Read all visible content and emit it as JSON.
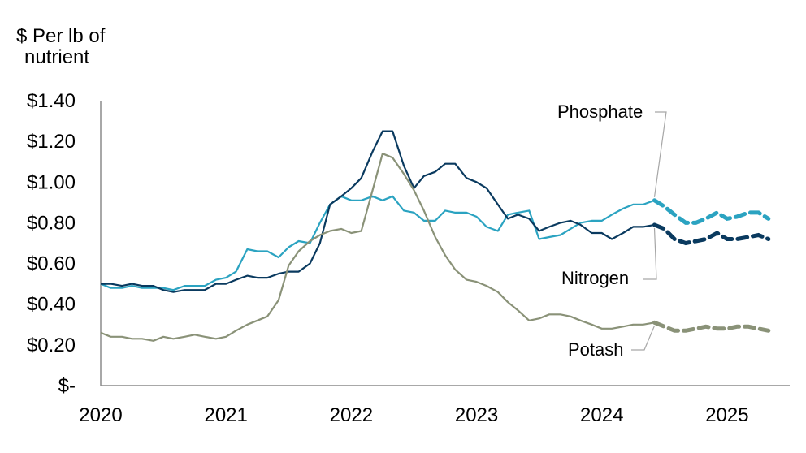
{
  "chart_data": {
    "type": "line",
    "y_unit_label_lines": [
      "$ Per lb of",
      "nutrient"
    ],
    "ylim": [
      0,
      1.4
    ],
    "yticks": [
      {
        "value": 0,
        "label": "$-"
      },
      {
        "value": 0.2,
        "label": "$0.20"
      },
      {
        "value": 0.4,
        "label": "$0.40"
      },
      {
        "value": 0.6,
        "label": "$0.60"
      },
      {
        "value": 0.8,
        "label": "$0.80"
      },
      {
        "value": 1.0,
        "label": "$1.00"
      },
      {
        "value": 1.2,
        "label": "$1.20"
      },
      {
        "value": 1.4,
        "label": "$1.40"
      }
    ],
    "xlim": [
      2020.0,
      2025.5
    ],
    "xticks": [
      {
        "value": 2020,
        "label": "2020"
      },
      {
        "value": 2021,
        "label": "2021"
      },
      {
        "value": 2022,
        "label": "2022"
      },
      {
        "value": 2023,
        "label": "2023"
      },
      {
        "value": 2024,
        "label": "2024"
      },
      {
        "value": 2025,
        "label": "2025"
      }
    ],
    "grid": false,
    "series": [
      {
        "name": "Phosphate",
        "color": "#2ba3c1",
        "actual": [
          [
            2020.0,
            0.5
          ],
          [
            2020.08,
            0.48
          ],
          [
            2020.17,
            0.48
          ],
          [
            2020.25,
            0.49
          ],
          [
            2020.33,
            0.48
          ],
          [
            2020.42,
            0.48
          ],
          [
            2020.5,
            0.48
          ],
          [
            2020.58,
            0.47
          ],
          [
            2020.67,
            0.49
          ],
          [
            2020.75,
            0.49
          ],
          [
            2020.83,
            0.49
          ],
          [
            2020.92,
            0.52
          ],
          [
            2021.0,
            0.53
          ],
          [
            2021.08,
            0.56
          ],
          [
            2021.17,
            0.67
          ],
          [
            2021.25,
            0.66
          ],
          [
            2021.33,
            0.66
          ],
          [
            2021.42,
            0.63
          ],
          [
            2021.5,
            0.68
          ],
          [
            2021.58,
            0.71
          ],
          [
            2021.67,
            0.7
          ],
          [
            2021.75,
            0.8
          ],
          [
            2021.83,
            0.89
          ],
          [
            2021.92,
            0.93
          ],
          [
            2022.0,
            0.91
          ],
          [
            2022.08,
            0.91
          ],
          [
            2022.17,
            0.93
          ],
          [
            2022.25,
            0.91
          ],
          [
            2022.33,
            0.93
          ],
          [
            2022.42,
            0.86
          ],
          [
            2022.5,
            0.85
          ],
          [
            2022.58,
            0.81
          ],
          [
            2022.67,
            0.81
          ],
          [
            2022.75,
            0.86
          ],
          [
            2022.83,
            0.85
          ],
          [
            2022.92,
            0.85
          ],
          [
            2023.0,
            0.83
          ],
          [
            2023.08,
            0.78
          ],
          [
            2023.17,
            0.76
          ],
          [
            2023.25,
            0.84
          ],
          [
            2023.33,
            0.85
          ],
          [
            2023.42,
            0.86
          ],
          [
            2023.5,
            0.72
          ],
          [
            2023.58,
            0.73
          ],
          [
            2023.67,
            0.74
          ],
          [
            2023.75,
            0.77
          ],
          [
            2023.83,
            0.8
          ],
          [
            2023.92,
            0.81
          ],
          [
            2024.0,
            0.81
          ],
          [
            2024.08,
            0.84
          ],
          [
            2024.17,
            0.87
          ],
          [
            2024.25,
            0.89
          ],
          [
            2024.33,
            0.89
          ],
          [
            2024.42,
            0.91
          ]
        ],
        "forecast": [
          [
            2024.42,
            0.91
          ],
          [
            2024.5,
            0.88
          ],
          [
            2024.58,
            0.84
          ],
          [
            2024.67,
            0.8
          ],
          [
            2024.75,
            0.8
          ],
          [
            2024.83,
            0.82
          ],
          [
            2024.92,
            0.85
          ],
          [
            2025.0,
            0.82
          ],
          [
            2025.08,
            0.83
          ],
          [
            2025.17,
            0.85
          ],
          [
            2025.25,
            0.85
          ],
          [
            2025.33,
            0.82
          ]
        ]
      },
      {
        "name": "Nitrogen",
        "color": "#0a3a5f",
        "actual": [
          [
            2020.0,
            0.5
          ],
          [
            2020.08,
            0.5
          ],
          [
            2020.17,
            0.49
          ],
          [
            2020.25,
            0.5
          ],
          [
            2020.33,
            0.49
          ],
          [
            2020.42,
            0.49
          ],
          [
            2020.5,
            0.47
          ],
          [
            2020.58,
            0.46
          ],
          [
            2020.67,
            0.47
          ],
          [
            2020.75,
            0.47
          ],
          [
            2020.83,
            0.47
          ],
          [
            2020.92,
            0.5
          ],
          [
            2021.0,
            0.5
          ],
          [
            2021.08,
            0.52
          ],
          [
            2021.17,
            0.54
          ],
          [
            2021.25,
            0.53
          ],
          [
            2021.33,
            0.53
          ],
          [
            2021.42,
            0.55
          ],
          [
            2021.5,
            0.56
          ],
          [
            2021.58,
            0.56
          ],
          [
            2021.67,
            0.6
          ],
          [
            2021.75,
            0.7
          ],
          [
            2021.83,
            0.89
          ],
          [
            2021.92,
            0.93
          ],
          [
            2022.0,
            0.97
          ],
          [
            2022.08,
            1.02
          ],
          [
            2022.17,
            1.15
          ],
          [
            2022.25,
            1.25
          ],
          [
            2022.33,
            1.25
          ],
          [
            2022.42,
            1.08
          ],
          [
            2022.5,
            0.97
          ],
          [
            2022.58,
            1.03
          ],
          [
            2022.67,
            1.05
          ],
          [
            2022.75,
            1.09
          ],
          [
            2022.83,
            1.09
          ],
          [
            2022.92,
            1.02
          ],
          [
            2023.0,
            1.0
          ],
          [
            2023.08,
            0.97
          ],
          [
            2023.17,
            0.89
          ],
          [
            2023.25,
            0.82
          ],
          [
            2023.33,
            0.84
          ],
          [
            2023.42,
            0.82
          ],
          [
            2023.5,
            0.76
          ],
          [
            2023.58,
            0.78
          ],
          [
            2023.67,
            0.8
          ],
          [
            2023.75,
            0.81
          ],
          [
            2023.83,
            0.79
          ],
          [
            2023.92,
            0.75
          ],
          [
            2024.0,
            0.75
          ],
          [
            2024.08,
            0.72
          ],
          [
            2024.17,
            0.75
          ],
          [
            2024.25,
            0.78
          ],
          [
            2024.33,
            0.78
          ],
          [
            2024.42,
            0.79
          ]
        ],
        "forecast": [
          [
            2024.42,
            0.79
          ],
          [
            2024.5,
            0.77
          ],
          [
            2024.58,
            0.72
          ],
          [
            2024.67,
            0.7
          ],
          [
            2024.75,
            0.71
          ],
          [
            2024.83,
            0.72
          ],
          [
            2024.92,
            0.75
          ],
          [
            2025.0,
            0.72
          ],
          [
            2025.08,
            0.72
          ],
          [
            2025.17,
            0.73
          ],
          [
            2025.25,
            0.74
          ],
          [
            2025.33,
            0.72
          ]
        ]
      },
      {
        "name": "Potash",
        "color": "#8a9278",
        "actual": [
          [
            2020.0,
            0.26
          ],
          [
            2020.08,
            0.24
          ],
          [
            2020.17,
            0.24
          ],
          [
            2020.25,
            0.23
          ],
          [
            2020.33,
            0.23
          ],
          [
            2020.42,
            0.22
          ],
          [
            2020.5,
            0.24
          ],
          [
            2020.58,
            0.23
          ],
          [
            2020.67,
            0.24
          ],
          [
            2020.75,
            0.25
          ],
          [
            2020.83,
            0.24
          ],
          [
            2020.92,
            0.23
          ],
          [
            2021.0,
            0.24
          ],
          [
            2021.08,
            0.27
          ],
          [
            2021.17,
            0.3
          ],
          [
            2021.25,
            0.32
          ],
          [
            2021.33,
            0.34
          ],
          [
            2021.42,
            0.42
          ],
          [
            2021.5,
            0.59
          ],
          [
            2021.58,
            0.66
          ],
          [
            2021.67,
            0.71
          ],
          [
            2021.75,
            0.74
          ],
          [
            2021.83,
            0.76
          ],
          [
            2021.92,
            0.77
          ],
          [
            2022.0,
            0.75
          ],
          [
            2022.08,
            0.76
          ],
          [
            2022.17,
            0.96
          ],
          [
            2022.25,
            1.14
          ],
          [
            2022.33,
            1.12
          ],
          [
            2022.42,
            1.04
          ],
          [
            2022.5,
            0.96
          ],
          [
            2022.58,
            0.86
          ],
          [
            2022.67,
            0.73
          ],
          [
            2022.75,
            0.64
          ],
          [
            2022.83,
            0.57
          ],
          [
            2022.92,
            0.52
          ],
          [
            2023.0,
            0.51
          ],
          [
            2023.08,
            0.49
          ],
          [
            2023.17,
            0.46
          ],
          [
            2023.25,
            0.41
          ],
          [
            2023.33,
            0.37
          ],
          [
            2023.42,
            0.32
          ],
          [
            2023.5,
            0.33
          ],
          [
            2023.58,
            0.35
          ],
          [
            2023.67,
            0.35
          ],
          [
            2023.75,
            0.34
          ],
          [
            2023.83,
            0.32
          ],
          [
            2023.92,
            0.3
          ],
          [
            2024.0,
            0.28
          ],
          [
            2024.08,
            0.28
          ],
          [
            2024.17,
            0.29
          ],
          [
            2024.25,
            0.3
          ],
          [
            2024.33,
            0.3
          ],
          [
            2024.42,
            0.31
          ]
        ],
        "forecast": [
          [
            2024.42,
            0.31
          ],
          [
            2024.5,
            0.29
          ],
          [
            2024.58,
            0.27
          ],
          [
            2024.67,
            0.27
          ],
          [
            2024.75,
            0.28
          ],
          [
            2024.83,
            0.29
          ],
          [
            2024.92,
            0.28
          ],
          [
            2025.0,
            0.28
          ],
          [
            2025.08,
            0.29
          ],
          [
            2025.17,
            0.29
          ],
          [
            2025.25,
            0.28
          ],
          [
            2025.33,
            0.27
          ]
        ]
      }
    ],
    "series_labels": [
      {
        "text": "Phosphate",
        "anchor_series": "Phosphate"
      },
      {
        "text": "Nitrogen",
        "anchor_series": "Nitrogen"
      },
      {
        "text": "Potash",
        "anchor_series": "Potash"
      }
    ]
  }
}
